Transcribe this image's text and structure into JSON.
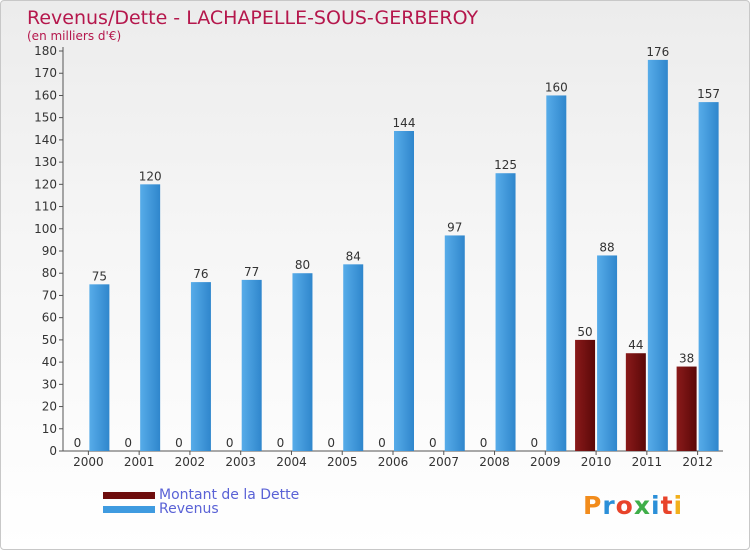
{
  "title": "Revenus/Dette - LACHAPELLE-SOUS-GERBEROY",
  "subtitle": "(en milliers d'€)",
  "legend": [
    {
      "label": "Montant de la Dette",
      "color": "#6e0d0d"
    },
    {
      "label": "Revenus",
      "color": "#3f9be0"
    }
  ],
  "logo": "Proxiti",
  "colors": {
    "title": "#b5174c",
    "dette": "#6e0d0d",
    "revenus": "#3f9be0"
  },
  "chart_data": {
    "type": "bar",
    "categories": [
      "2000",
      "2001",
      "2002",
      "2003",
      "2004",
      "2005",
      "2006",
      "2007",
      "2008",
      "2009",
      "2010",
      "2011",
      "2012"
    ],
    "series": [
      {
        "name": "Montant de la Dette",
        "values": [
          0,
          0,
          0,
          0,
          0,
          0,
          0,
          0,
          0,
          0,
          50,
          44,
          38
        ]
      },
      {
        "name": "Revenus",
        "values": [
          75,
          120,
          76,
          77,
          80,
          84,
          144,
          97,
          125,
          160,
          88,
          176,
          157
        ]
      }
    ],
    "ylim": [
      0,
      180
    ],
    "yticks": [
      0,
      10,
      20,
      30,
      40,
      50,
      60,
      70,
      80,
      90,
      100,
      110,
      120,
      130,
      140,
      150,
      160,
      170,
      180
    ],
    "grid": false,
    "legend_position": "bottom-left"
  }
}
